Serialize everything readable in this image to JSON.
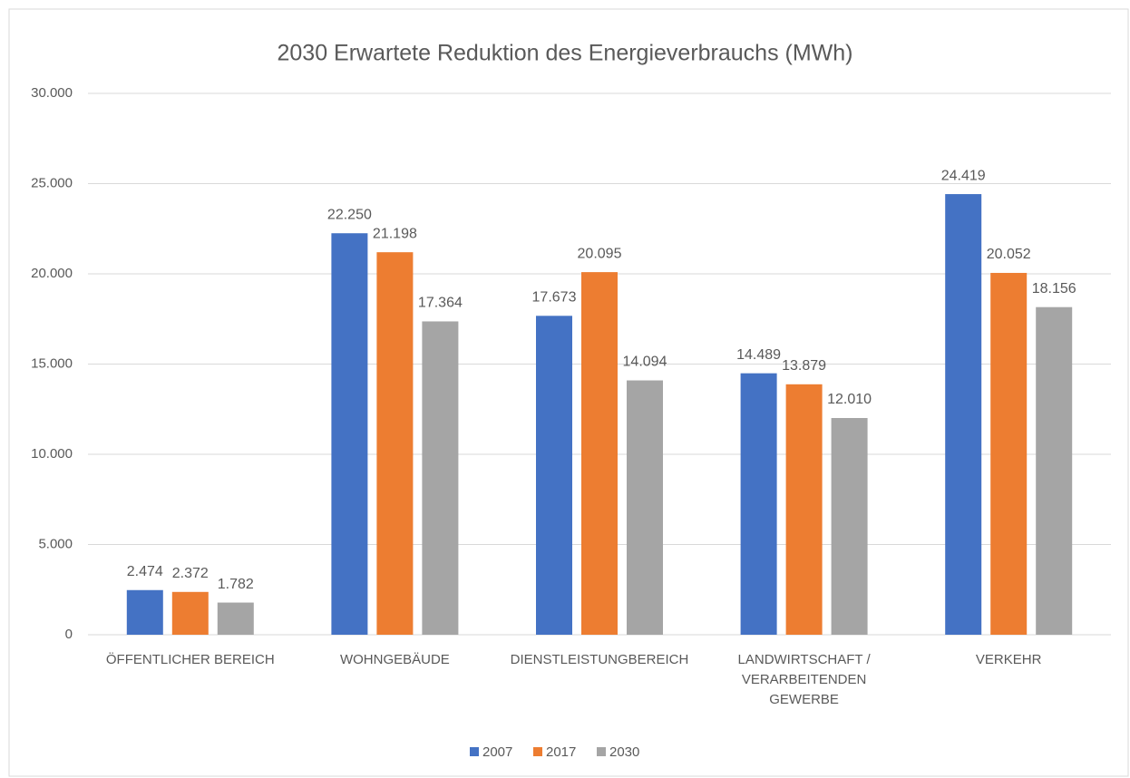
{
  "chart_data": {
    "type": "bar",
    "title": "2030 Erwartete Reduktion des Energieverbrauchs (MWh)",
    "categories": [
      "ÖFFENTLICHER BEREICH",
      "WOHNGEBÄUDE",
      "DIENSTLEISTUNGBEREICH",
      "LANDWIRTSCHAFT / VERARBEITENDEN GEWERBE",
      "VERKEHR"
    ],
    "series": [
      {
        "name": "2007",
        "color": "#4472c4",
        "values": [
          2474,
          22250,
          17673,
          14489,
          24419
        ],
        "value_labels": [
          "2.474",
          "22.250",
          "17.673",
          "14.489",
          "24.419"
        ]
      },
      {
        "name": "2017",
        "color": "#ed7d31",
        "values": [
          2372,
          21198,
          20095,
          13879,
          20052
        ],
        "value_labels": [
          "2.372",
          "21.198",
          "20.095",
          "13.879",
          "20.052"
        ]
      },
      {
        "name": "2030",
        "color": "#a5a5a5",
        "values": [
          1782,
          17364,
          14094,
          12010,
          18156
        ],
        "value_labels": [
          "1.782",
          "17.364",
          "14.094",
          "12.010",
          "18.156"
        ]
      }
    ],
    "ylim": [
      0,
      30000
    ],
    "yticks": [
      0,
      {
        "value": 5000,
        "label": "5.000"
      },
      {
        "value": 10000,
        "label": "10.000"
      },
      {
        "value": 15000,
        "label": "15.000"
      },
      {
        "value": 20000,
        "label": "20.000"
      },
      {
        "value": 25000,
        "label": "25.000"
      },
      {
        "value": 30000,
        "label": "30.000"
      }
    ],
    "grid": true,
    "legend": "bottom"
  }
}
